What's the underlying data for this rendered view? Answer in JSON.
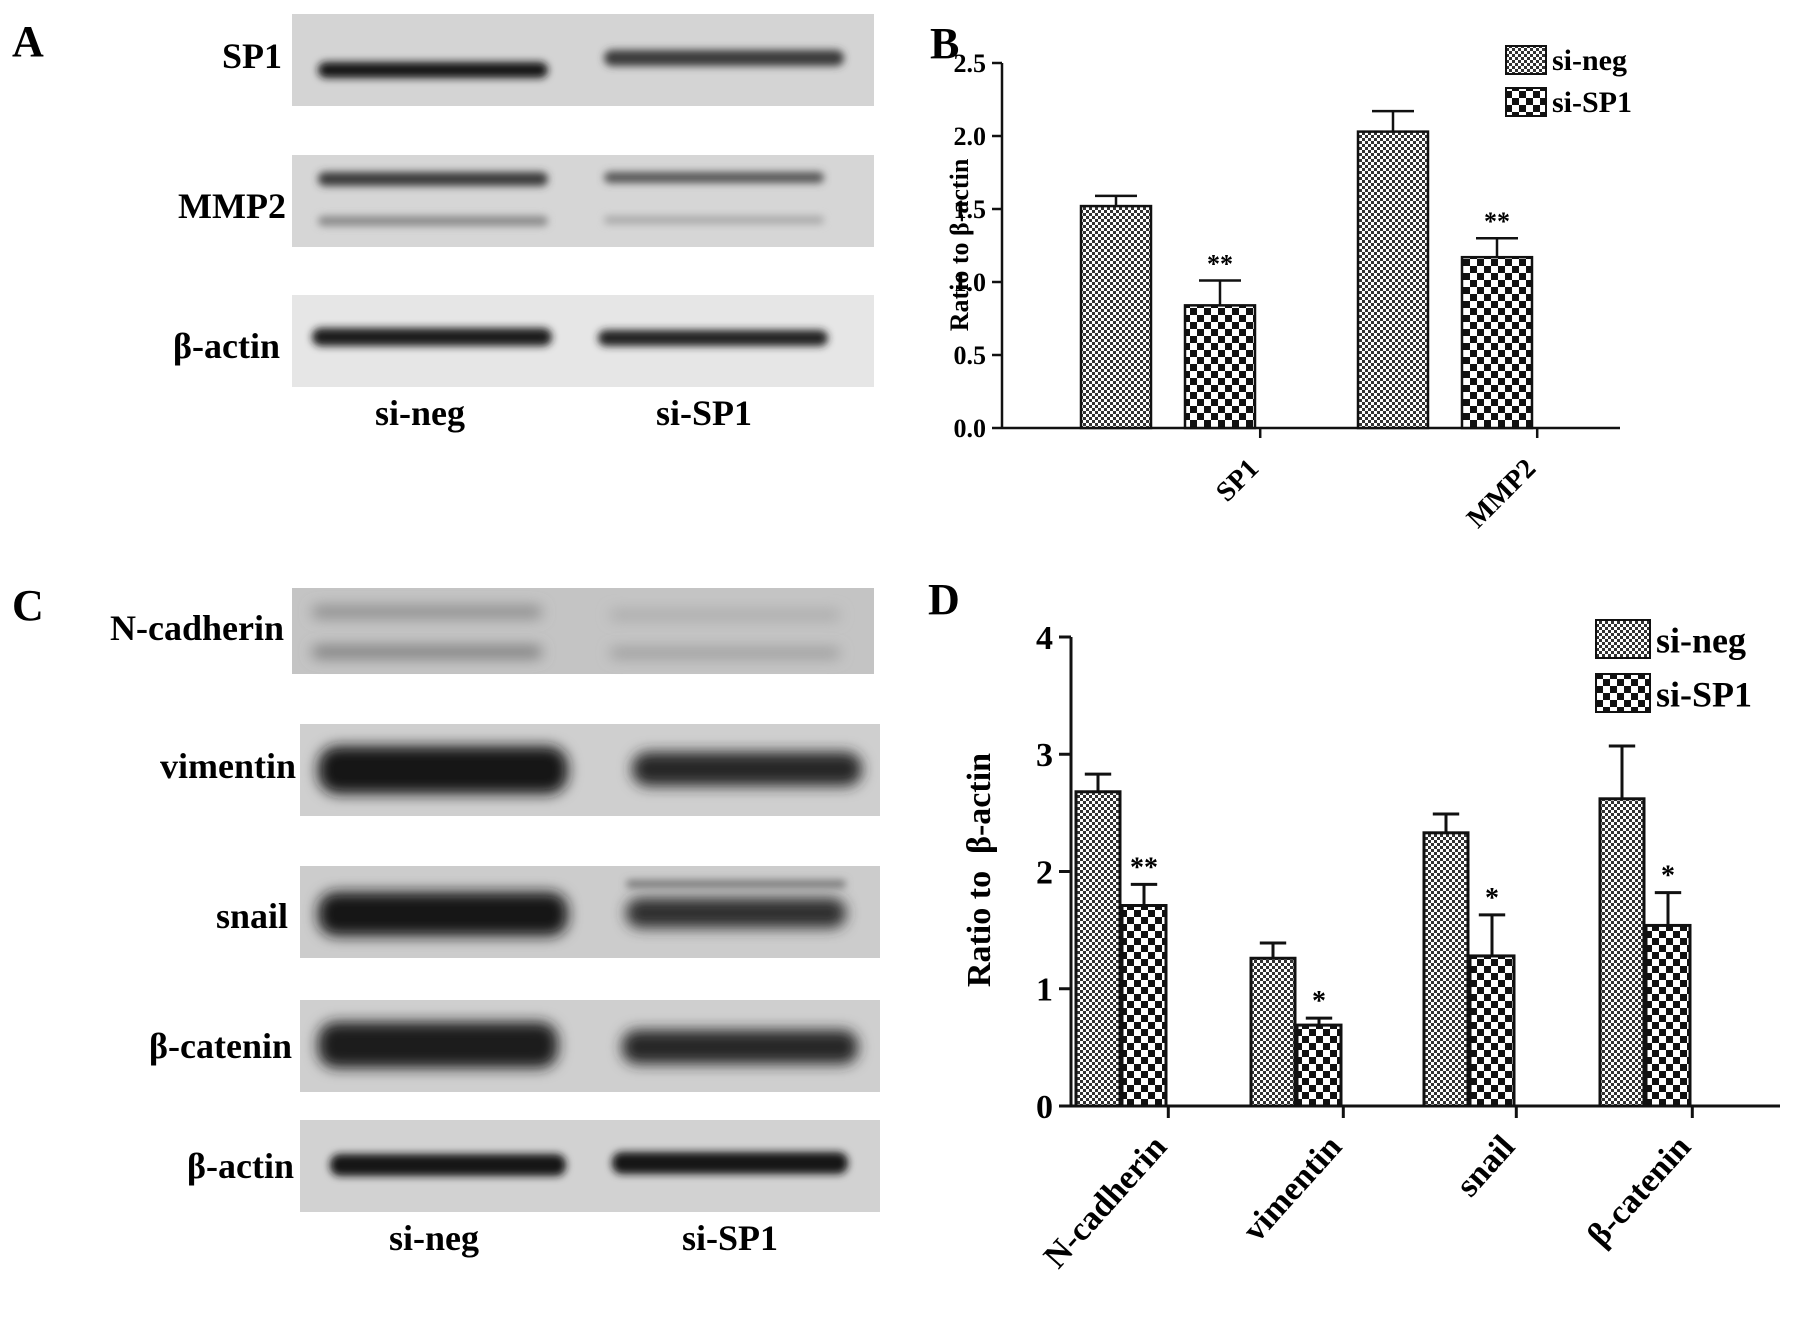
{
  "panels": {
    "A": {
      "letter": "A",
      "rows": [
        "SP1",
        "MMP2",
        "β-actin"
      ],
      "lanes": [
        "si-neg",
        "si-SP1"
      ]
    },
    "C": {
      "letter": "C",
      "rows": [
        "N-cadherin",
        "vimentin",
        "snail",
        "β-catenin",
        "β-actin"
      ],
      "lanes": [
        "si-neg",
        "si-SP1"
      ]
    }
  },
  "chart_data": [
    {
      "panel": "B",
      "type": "bar",
      "ylabel": "Ratio to β-actin",
      "categories": [
        "SP1",
        "MMP2"
      ],
      "ylim": [
        0,
        2.5
      ],
      "yticks": [
        "0.0",
        "0.5",
        "1.0",
        "1.5",
        "2.0",
        "2.5"
      ],
      "series": [
        {
          "name": "si-neg",
          "values": [
            1.52,
            2.03
          ],
          "errors": [
            0.07,
            0.14
          ]
        },
        {
          "name": "si-SP1",
          "values": [
            0.84,
            1.17
          ],
          "errors": [
            0.17,
            0.13
          ]
        }
      ],
      "annotations": [
        "**",
        "**"
      ],
      "legend": "top-right"
    },
    {
      "panel": "D",
      "type": "bar",
      "ylabel": "Ratio to  β-actin",
      "categories": [
        "N-cadherin",
        "vimentin",
        "snail",
        "β-catenin"
      ],
      "ylim": [
        0,
        4
      ],
      "yticks": [
        "0",
        "1",
        "2",
        "3",
        "4"
      ],
      "series": [
        {
          "name": "si-neg",
          "values": [
            2.68,
            1.26,
            2.33,
            2.62
          ],
          "errors": [
            0.15,
            0.13,
            0.16,
            0.45
          ]
        },
        {
          "name": "si-SP1",
          "values": [
            1.71,
            0.69,
            1.28,
            1.54
          ],
          "errors": [
            0.18,
            0.06,
            0.35,
            0.28
          ]
        }
      ],
      "annotations": [
        "**",
        "*",
        "*",
        "*"
      ],
      "legend": "top-right"
    }
  ]
}
